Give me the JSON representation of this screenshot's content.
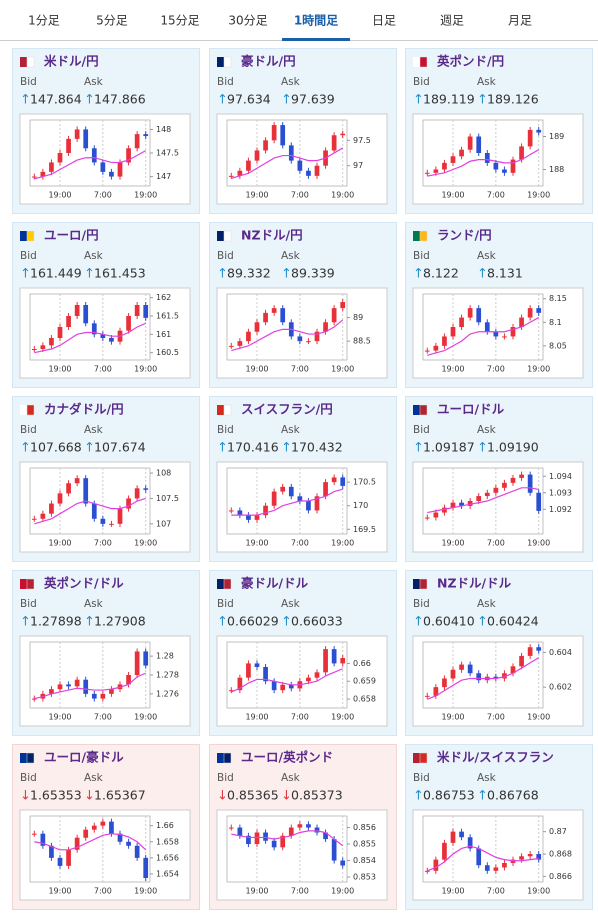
{
  "tabs": {
    "items": [
      "1分足",
      "5分足",
      "15分足",
      "30分足",
      "1時間足",
      "日足",
      "週足",
      "月足"
    ],
    "active": 4
  },
  "labels": {
    "bid": "Bid",
    "ask": "Ask"
  },
  "panels": [
    {
      "title": "米ドル/円",
      "bid": "147.864",
      "ask": "147.866",
      "trend": "up",
      "ylim": [
        146.8,
        148.2
      ],
      "yticks": [
        147,
        147.5,
        148
      ],
      "xticks": [
        {
          "value": 3,
          "label": "19:00"
        },
        {
          "value": 8,
          "label": "7:00"
        },
        {
          "value": 13,
          "label": "19:00"
        }
      ],
      "closes": [
        147.0,
        147.1,
        147.3,
        147.5,
        147.8,
        148.0,
        147.6,
        147.3,
        147.1,
        147.0,
        147.3,
        147.6,
        147.9,
        147.86
      ],
      "ma": [
        146.95,
        147.0,
        147.05,
        147.15,
        147.25,
        147.35,
        147.4,
        147.4,
        147.35,
        147.3,
        147.3,
        147.35,
        147.45,
        147.55
      ]
    },
    {
      "title": "豪ドル/円",
      "bid": "97.634",
      "ask": "97.639",
      "trend": "up",
      "ylim": [
        96.6,
        97.9
      ],
      "yticks": [
        97,
        97.5
      ],
      "xticks": [
        {
          "value": 3,
          "label": "19:00"
        },
        {
          "value": 8,
          "label": "7:00"
        },
        {
          "value": 13,
          "label": "19:00"
        }
      ],
      "closes": [
        96.8,
        96.9,
        97.1,
        97.3,
        97.5,
        97.8,
        97.4,
        97.1,
        96.9,
        96.8,
        97.0,
        97.3,
        97.6,
        97.63
      ],
      "ma": [
        96.75,
        96.8,
        96.85,
        96.95,
        97.05,
        97.15,
        97.2,
        97.2,
        97.15,
        97.1,
        97.1,
        97.15,
        97.25,
        97.35
      ]
    },
    {
      "title": "英ポンド/円",
      "bid": "189.119",
      "ask": "189.126",
      "trend": "up",
      "ylim": [
        187.5,
        189.5
      ],
      "yticks": [
        188,
        189
      ],
      "xticks": [
        {
          "value": 3,
          "label": "19:00"
        },
        {
          "value": 8,
          "label": "7:00"
        },
        {
          "value": 13,
          "label": "19:00"
        }
      ],
      "closes": [
        187.9,
        188.0,
        188.2,
        188.4,
        188.6,
        189.0,
        188.5,
        188.2,
        188.0,
        187.9,
        188.3,
        188.7,
        189.2,
        189.12
      ],
      "ma": [
        187.8,
        187.85,
        187.9,
        188.0,
        188.1,
        188.25,
        188.3,
        188.3,
        188.25,
        188.2,
        188.2,
        188.3,
        188.45,
        188.6
      ]
    },
    {
      "title": "ユーロ/円",
      "bid": "161.449",
      "ask": "161.453",
      "trend": "up",
      "ylim": [
        160.3,
        162.1
      ],
      "yticks": [
        160.5,
        161,
        161.5,
        162
      ],
      "xticks": [
        {
          "value": 3,
          "label": "19:00"
        },
        {
          "value": 8,
          "label": "7:00"
        },
        {
          "value": 13,
          "label": "19:00"
        }
      ],
      "closes": [
        160.6,
        160.7,
        160.9,
        161.2,
        161.5,
        161.8,
        161.3,
        161.0,
        160.9,
        160.8,
        161.1,
        161.5,
        161.8,
        161.45
      ],
      "ma": [
        160.5,
        160.55,
        160.6,
        160.7,
        160.85,
        161.0,
        161.05,
        161.05,
        161.0,
        160.95,
        160.95,
        161.05,
        161.2,
        161.3
      ]
    },
    {
      "title": "NZドル/円",
      "bid": "89.332",
      "ask": "89.339",
      "trend": "up",
      "ylim": [
        88.1,
        89.5
      ],
      "yticks": [
        88.5,
        89
      ],
      "xticks": [
        {
          "value": 3,
          "label": "19:00"
        },
        {
          "value": 8,
          "label": "7:00"
        },
        {
          "value": 13,
          "label": "19:00"
        }
      ],
      "closes": [
        88.4,
        88.5,
        88.7,
        88.9,
        89.1,
        89.2,
        88.9,
        88.6,
        88.5,
        88.5,
        88.7,
        88.9,
        89.2,
        89.33
      ],
      "ma": [
        88.3,
        88.35,
        88.4,
        88.5,
        88.6,
        88.7,
        88.75,
        88.75,
        88.7,
        88.65,
        88.65,
        88.7,
        88.8,
        88.95
      ]
    },
    {
      "title": "ランド/円",
      "bid": "8.122",
      "ask": "8.131",
      "trend": "up",
      "ylim": [
        8.02,
        8.16
      ],
      "yticks": [
        8.05,
        8.1,
        8.15
      ],
      "xticks": [
        {
          "value": 3,
          "label": "19:00"
        },
        {
          "value": 8,
          "label": "7:00"
        },
        {
          "value": 13,
          "label": "19:00"
        }
      ],
      "closes": [
        8.04,
        8.05,
        8.07,
        8.09,
        8.11,
        8.13,
        8.1,
        8.08,
        8.07,
        8.07,
        8.09,
        8.11,
        8.13,
        8.12
      ],
      "ma": [
        8.03,
        8.035,
        8.04,
        8.05,
        8.06,
        8.075,
        8.08,
        8.08,
        8.08,
        8.08,
        8.085,
        8.09,
        8.1,
        8.11
      ]
    },
    {
      "title": "カナダドル/円",
      "bid": "107.668",
      "ask": "107.674",
      "trend": "up",
      "ylim": [
        106.8,
        108.1
      ],
      "yticks": [
        107,
        107.5,
        108
      ],
      "xticks": [
        {
          "value": 3,
          "label": "19:00"
        },
        {
          "value": 8,
          "label": "7:00"
        },
        {
          "value": 13,
          "label": "19:00"
        }
      ],
      "closes": [
        107.1,
        107.2,
        107.4,
        107.6,
        107.8,
        107.9,
        107.4,
        107.1,
        107.0,
        107.0,
        107.3,
        107.5,
        107.7,
        107.67
      ],
      "ma": [
        107.0,
        107.05,
        107.1,
        107.2,
        107.3,
        107.4,
        107.45,
        107.4,
        107.35,
        107.3,
        107.3,
        107.35,
        107.45,
        107.5
      ]
    },
    {
      "title": "スイスフラン/円",
      "bid": "170.416",
      "ask": "170.432",
      "trend": "up",
      "ylim": [
        169.4,
        170.8
      ],
      "yticks": [
        169.5,
        170,
        170.5
      ],
      "xticks": [
        {
          "value": 3,
          "label": "19:00"
        },
        {
          "value": 8,
          "label": "7:00"
        },
        {
          "value": 13,
          "label": "19:00"
        }
      ],
      "closes": [
        169.9,
        169.8,
        169.7,
        169.8,
        170.0,
        170.3,
        170.4,
        170.2,
        170.1,
        169.9,
        170.2,
        170.5,
        170.6,
        170.42
      ],
      "ma": [
        169.8,
        169.8,
        169.8,
        169.8,
        169.85,
        169.9,
        170.0,
        170.05,
        170.1,
        170.1,
        170.15,
        170.2,
        170.3,
        170.35
      ]
    },
    {
      "title": "ユーロ/ドル",
      "bid": "1.09187",
      "ask": "1.09190",
      "trend": "up",
      "ylim": [
        1.0905,
        1.0945
      ],
      "yticks": [
        1.092,
        1.093,
        1.094
      ],
      "xticks": [
        {
          "value": 3,
          "label": "19:00"
        },
        {
          "value": 8,
          "label": "7:00"
        },
        {
          "value": 13,
          "label": "19:00"
        }
      ],
      "closes": [
        1.0915,
        1.0918,
        1.0921,
        1.0924,
        1.0922,
        1.0925,
        1.0928,
        1.093,
        1.0933,
        1.0936,
        1.0939,
        1.0941,
        1.093,
        1.0919
      ],
      "ma": [
        1.0918,
        1.0919,
        1.092,
        1.0921,
        1.0922,
        1.0923,
        1.0924,
        1.0925,
        1.0927,
        1.0929,
        1.0931,
        1.0933,
        1.0933,
        1.0932
      ]
    },
    {
      "title": "英ポンド/ドル",
      "bid": "1.27898",
      "ask": "1.27908",
      "trend": "up",
      "ylim": [
        1.2745,
        1.2815
      ],
      "yticks": [
        1.276,
        1.278,
        1.28
      ],
      "xticks": [
        {
          "value": 3,
          "label": "19:00"
        },
        {
          "value": 8,
          "label": "7:00"
        },
        {
          "value": 13,
          "label": "19:00"
        }
      ],
      "closes": [
        1.2755,
        1.276,
        1.2765,
        1.277,
        1.2768,
        1.2775,
        1.276,
        1.2755,
        1.276,
        1.2765,
        1.277,
        1.278,
        1.2805,
        1.279
      ],
      "ma": [
        1.2755,
        1.2757,
        1.276,
        1.2762,
        1.2764,
        1.2766,
        1.2765,
        1.2764,
        1.2764,
        1.2765,
        1.2767,
        1.277,
        1.2778,
        1.2782
      ]
    },
    {
      "title": "豪ドル/ドル",
      "bid": "0.66029",
      "ask": "0.66033",
      "trend": "up",
      "ylim": [
        0.6575,
        0.6612
      ],
      "yticks": [
        0.658,
        0.659,
        0.66
      ],
      "xticks": [
        {
          "value": 3,
          "label": "19:00"
        },
        {
          "value": 8,
          "label": "7:00"
        },
        {
          "value": 13,
          "label": "19:00"
        }
      ],
      "closes": [
        0.6585,
        0.6592,
        0.66,
        0.6598,
        0.659,
        0.6585,
        0.6588,
        0.6586,
        0.659,
        0.6592,
        0.6595,
        0.6608,
        0.66,
        0.6603
      ],
      "ma": [
        0.6584,
        0.6586,
        0.6589,
        0.6591,
        0.6591,
        0.659,
        0.6589,
        0.6588,
        0.6588,
        0.6589,
        0.659,
        0.6593,
        0.6595,
        0.6597
      ]
    },
    {
      "title": "NZドル/ドル",
      "bid": "0.60410",
      "ask": "0.60424",
      "trend": "up",
      "ylim": [
        0.6008,
        0.6046
      ],
      "yticks": [
        0.602,
        0.604
      ],
      "xticks": [
        {
          "value": 3,
          "label": "19:00"
        },
        {
          "value": 8,
          "label": "7:00"
        },
        {
          "value": 13,
          "label": "19:00"
        }
      ],
      "closes": [
        0.6015,
        0.602,
        0.6025,
        0.603,
        0.6033,
        0.6028,
        0.6024,
        0.6026,
        0.6025,
        0.6028,
        0.6032,
        0.6038,
        0.6043,
        0.6041
      ],
      "ma": [
        0.6013,
        0.6015,
        0.6018,
        0.6021,
        0.6024,
        0.6025,
        0.6025,
        0.6025,
        0.6025,
        0.6026,
        0.6028,
        0.6031,
        0.6034,
        0.6037
      ]
    },
    {
      "title": "ユーロ/豪ドル",
      "bid": "1.65353",
      "ask": "1.65367",
      "trend": "down",
      "ylim": [
        1.653,
        1.6612
      ],
      "yticks": [
        1.654,
        1.656,
        1.658,
        1.66
      ],
      "xticks": [
        {
          "value": 3,
          "label": "19:00"
        },
        {
          "value": 8,
          "label": "7:00"
        },
        {
          "value": 13,
          "label": "19:00"
        }
      ],
      "closes": [
        1.659,
        1.6575,
        1.656,
        1.655,
        1.657,
        1.6585,
        1.6595,
        1.66,
        1.6605,
        1.659,
        1.658,
        1.6575,
        1.656,
        1.6535
      ],
      "ma": [
        1.658,
        1.6578,
        1.6574,
        1.657,
        1.657,
        1.6573,
        1.6578,
        1.6583,
        1.6588,
        1.659,
        1.6589,
        1.6586,
        1.658,
        1.657
      ]
    },
    {
      "title": "ユーロ/英ポンド",
      "bid": "0.85365",
      "ask": "0.85373",
      "trend": "down",
      "ylim": [
        0.8527,
        0.8567
      ],
      "yticks": [
        0.853,
        0.854,
        0.855,
        0.856
      ],
      "xticks": [
        {
          "value": 3,
          "label": "19:00"
        },
        {
          "value": 8,
          "label": "7:00"
        },
        {
          "value": 13,
          "label": "19:00"
        }
      ],
      "closes": [
        0.856,
        0.8555,
        0.855,
        0.8557,
        0.8552,
        0.8548,
        0.8555,
        0.856,
        0.8562,
        0.856,
        0.8557,
        0.8553,
        0.854,
        0.8537
      ],
      "ma": [
        0.8556,
        0.8555,
        0.8554,
        0.8554,
        0.8554,
        0.8553,
        0.8554,
        0.8555,
        0.8557,
        0.8558,
        0.8558,
        0.8557,
        0.8553,
        0.8549
      ]
    },
    {
      "title": "米ドル/スイスフラン",
      "bid": "0.86753",
      "ask": "0.86768",
      "trend": "up",
      "ylim": [
        0.8655,
        0.8714
      ],
      "yticks": [
        0.866,
        0.868,
        0.87
      ],
      "xticks": [
        {
          "value": 3,
          "label": "19:00"
        },
        {
          "value": 8,
          "label": "7:00"
        },
        {
          "value": 13,
          "label": "19:00"
        }
      ],
      "closes": [
        0.8665,
        0.8675,
        0.869,
        0.87,
        0.8695,
        0.8685,
        0.867,
        0.8665,
        0.8668,
        0.8672,
        0.8675,
        0.8678,
        0.868,
        0.8675
      ],
      "ma": [
        0.8665,
        0.8668,
        0.8673,
        0.868,
        0.8685,
        0.8687,
        0.8685,
        0.8681,
        0.8677,
        0.8675,
        0.8674,
        0.8674,
        0.8675,
        0.8676
      ]
    }
  ]
}
